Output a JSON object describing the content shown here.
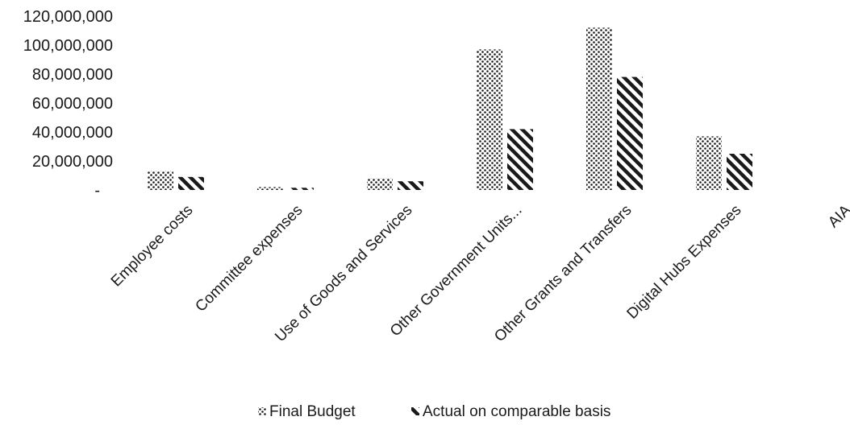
{
  "chart_data": {
    "type": "bar",
    "title": "",
    "xlabel": "",
    "ylabel": "",
    "ylim": [
      0,
      120000000
    ],
    "y_ticks": [
      "-",
      "20,000,000",
      "40,000,000",
      "60,000,000",
      "80,000,000",
      "100,000,000",
      "120,000,000"
    ],
    "categories": [
      "Employee costs",
      "Committee expenses",
      "Use of Goods and Services",
      "Other Government Units...",
      "Other Grants and Transfers",
      "Digital Hubs Expenses",
      "AIA"
    ],
    "series": [
      {
        "name": "Final Budget",
        "pattern": "dots",
        "values": [
          13000000,
          2000000,
          8000000,
          97000000,
          112000000,
          37000000,
          0
        ]
      },
      {
        "name": "Actual on comparable basis",
        "pattern": "diagonal-stripes",
        "values": [
          9000000,
          1500000,
          6000000,
          42000000,
          78000000,
          25000000,
          0
        ]
      }
    ],
    "grid": false,
    "legend_position": "bottom"
  },
  "colors": {
    "ink": "#1a1a1a",
    "background": "#ffffff"
  }
}
